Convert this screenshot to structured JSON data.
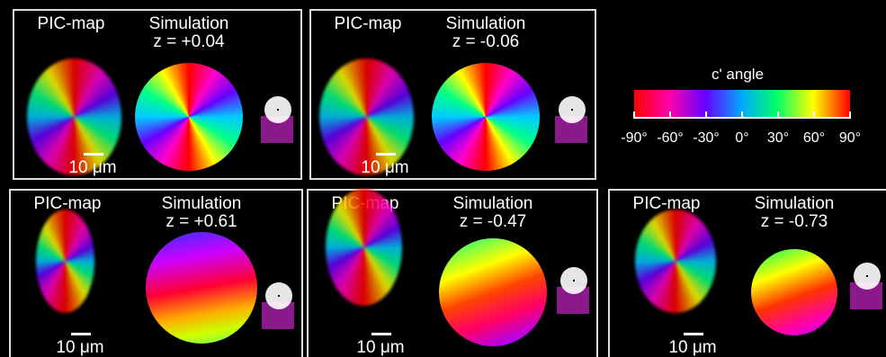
{
  "panels": [
    {
      "pic_label": "PIC-map",
      "sim_label": "Simulation",
      "z_label": "z = +0.04",
      "scale_label": "10 μm"
    },
    {
      "pic_label": "PIC-map",
      "sim_label": "Simulation",
      "z_label": "z = -0.06",
      "scale_label": "10 μm"
    },
    {
      "pic_label": "PIC-map",
      "sim_label": "Simulation",
      "z_label": "z = +0.61",
      "scale_label": "10 μm"
    },
    {
      "pic_label": "PIC-map",
      "sim_label": "Simulation",
      "z_label": "z = -0.47",
      "scale_label": "10 μm"
    },
    {
      "pic_label": "PIC-map",
      "sim_label": "Simulation",
      "z_label": "z = -0.73",
      "scale_label": "10 μm"
    }
  ],
  "colorbar": {
    "title": "c' angle",
    "tick_labels": [
      "-90°",
      "-60°",
      "-30°",
      "0°",
      "30°",
      "60°",
      "90°"
    ]
  }
}
